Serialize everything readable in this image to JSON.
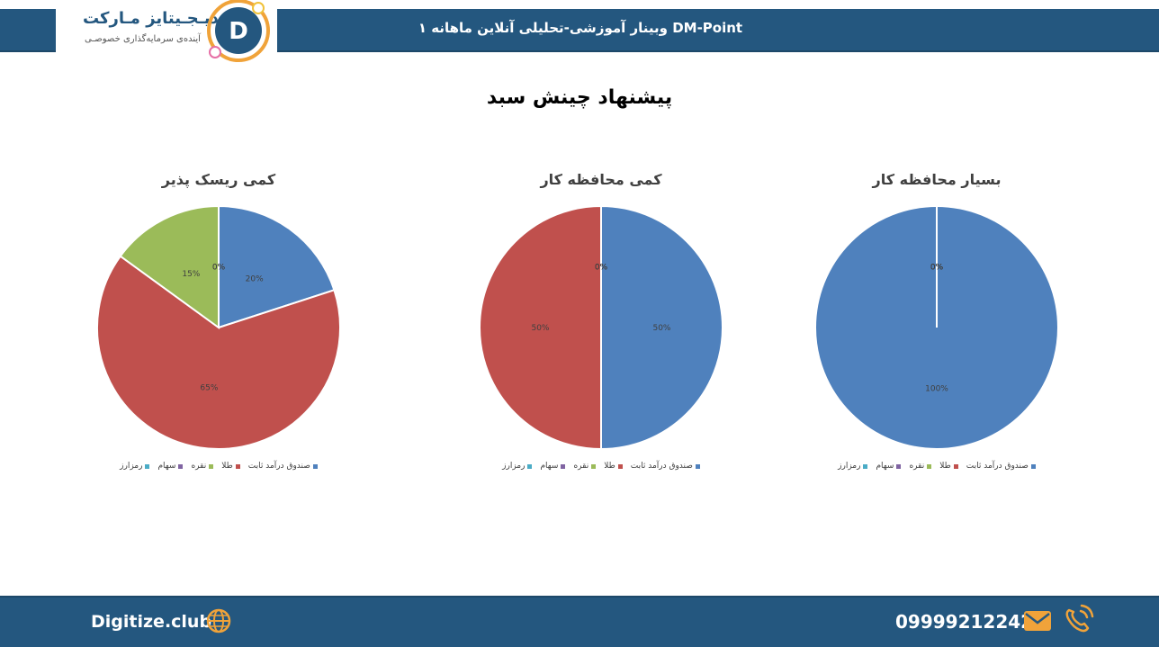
{
  "header": {
    "title": "وبینار آموزشی-تحلیلی آنلاین ماهانه ۱ DM-Point",
    "logo_title": "دیـجـیتایز مـارکت",
    "logo_subtitle": "آینده‌ی سرمایه‌گذاری خصوصـی",
    "logo_letter": "D"
  },
  "page_title": "پیشنهاد چینش سبد",
  "legend": {
    "labels": [
      "صندوق درآمد ثابت",
      "طلا",
      "نقره",
      "سهام",
      "رمزارز"
    ],
    "colors": [
      "#4f81bd",
      "#c0504d",
      "#9bbb59",
      "#8064a2",
      "#4bacc6"
    ]
  },
  "chart_data": [
    {
      "type": "pie",
      "title": "کمی ریسک پذیر",
      "categories": [
        "صندوق درآمد ثابت",
        "طلا",
        "نقره",
        "سهام",
        "رمزارز"
      ],
      "values": [
        20,
        65,
        15,
        0,
        0
      ],
      "labels": [
        "20%",
        "65%",
        "15%",
        "0%",
        "0%"
      ]
    },
    {
      "type": "pie",
      "title": "کمی محافظه کار",
      "categories": [
        "صندوق درآمد ثابت",
        "طلا",
        "نقره",
        "سهام",
        "رمزارز"
      ],
      "values": [
        50,
        50,
        0,
        0,
        0
      ],
      "labels": [
        "50%",
        "50%",
        "0%",
        "0%",
        "0%"
      ]
    },
    {
      "type": "pie",
      "title": "بسیار محافظه کار",
      "categories": [
        "صندوق درآمد ثابت",
        "طلا",
        "نقره",
        "سهام",
        "رمزارز"
      ],
      "values": [
        100,
        0,
        0,
        0,
        0
      ],
      "labels": [
        "100%",
        "0%",
        "0%",
        "0%",
        "0%"
      ]
    }
  ],
  "footer": {
    "website": "Digitize.club",
    "phone": "09999212242",
    "globe_icon": "globe-icon",
    "mail_icon": "mail-icon",
    "phone_icon": "phone-icon"
  }
}
